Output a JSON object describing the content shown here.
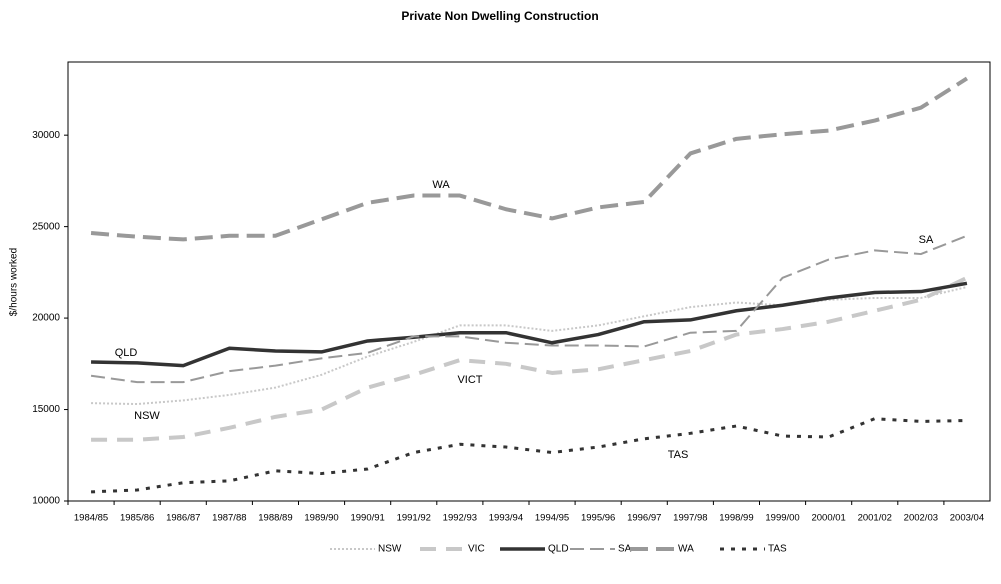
{
  "chart_data": {
    "type": "line",
    "title": "Private Non Dwelling Construction",
    "y_label": "$/hours worked",
    "categories": [
      "1984/85",
      "1985/86",
      "1986/87",
      "1987/88",
      "1988/89",
      "1989/90",
      "1990/91",
      "1991/92",
      "1992/93",
      "1993/94",
      "1994/95",
      "1995/96",
      "1996/97",
      "1997/98",
      "1998/99",
      "1999/00",
      "2000/01",
      "2001/02",
      "2002/03",
      "2003/04"
    ],
    "ylim": [
      10000,
      34000
    ],
    "yticks": [
      10000,
      15000,
      20000,
      25000,
      30000
    ],
    "series": [
      {
        "name": "NSW",
        "color": "#c8c8c8",
        "values": [
          15350,
          15300,
          15500,
          15800,
          16200,
          16900,
          17900,
          18700,
          19600,
          19600,
          19300,
          19600,
          20100,
          20600,
          20850,
          20700,
          21000,
          21100,
          21100,
          21700
        ]
      },
      {
        "name": "VIC",
        "color": "#c8c8c8",
        "values": [
          13350,
          13350,
          13500,
          14000,
          14600,
          15000,
          16200,
          16900,
          17700,
          17500,
          17000,
          17200,
          17700,
          18200,
          19100,
          19400,
          19800,
          20400,
          21000,
          22200
        ]
      },
      {
        "name": "QLD",
        "color": "#333333",
        "values": [
          17600,
          17550,
          17400,
          18350,
          18200,
          18150,
          18750,
          18950,
          19200,
          19200,
          18650,
          19100,
          19800,
          19900,
          20400,
          20700,
          21100,
          21400,
          21450,
          21900
        ]
      },
      {
        "name": "SA",
        "color": "#999999",
        "values": [
          16850,
          16500,
          16500,
          17100,
          17400,
          17800,
          18100,
          19000,
          19000,
          18650,
          18500,
          18500,
          18450,
          19200,
          19300,
          22200,
          23200,
          23700,
          23500,
          24500
        ]
      },
      {
        "name": "WA",
        "color": "#999999",
        "values": [
          24650,
          24450,
          24300,
          24500,
          24500,
          25400,
          26300,
          26700,
          26700,
          25950,
          25450,
          26050,
          26350,
          29000,
          29800,
          30050,
          30250,
          30800,
          31500,
          33100
        ]
      },
      {
        "name": "TAS",
        "color": "#333333",
        "values": [
          10500,
          10600,
          11000,
          11100,
          11650,
          11500,
          11750,
          12650,
          13100,
          12950,
          12650,
          12950,
          13400,
          13700,
          14100,
          13550,
          13500,
          14500,
          14350,
          14400
        ]
      }
    ],
    "annotations": [
      "WA",
      "SA",
      "QLD",
      "NSW",
      "VICT",
      "TAS"
    ]
  }
}
